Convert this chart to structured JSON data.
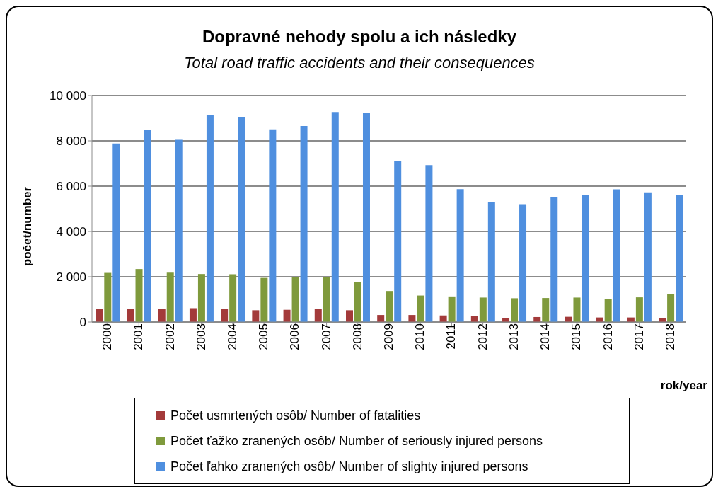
{
  "chart_data": {
    "type": "bar",
    "title": "Dopravné nehody spolu a ich následky",
    "subtitle": "Total  road traffic accidents and their consequences",
    "xlabel": "rok/year",
    "ylabel": "počet/number",
    "categories": [
      "2000",
      "2001",
      "2002",
      "2003",
      "2004",
      "2005",
      "2006",
      "2007",
      "2008",
      "2009",
      "2010",
      "2011",
      "2012",
      "2013",
      "2014",
      "2015",
      "2016",
      "2017",
      "2018"
    ],
    "series": [
      {
        "name": "Počet usmrtených osôb/ Number of fatalities",
        "color": "#a33a3a",
        "values": [
          590,
          580,
          580,
          610,
          570,
          520,
          540,
          590,
          520,
          310,
          310,
          290,
          250,
          180,
          220,
          230,
          200,
          200,
          180
        ]
      },
      {
        "name": "Počet ťažko zranených osôb/ Number of seriously injured persons",
        "color": "#7f9a3c",
        "values": [
          2170,
          2340,
          2180,
          2120,
          2110,
          1950,
          1990,
          1990,
          1770,
          1370,
          1170,
          1130,
          1080,
          1050,
          1060,
          1080,
          1020,
          1090,
          1230
        ]
      },
      {
        "name": "Počet ľahko zranených osôb/ Number of slighty injured persons",
        "color": "#4f8fdf",
        "values": [
          7880,
          8470,
          8050,
          9160,
          9040,
          8510,
          8660,
          9270,
          9240,
          7100,
          6930,
          5870,
          5290,
          5200,
          5500,
          5610,
          5860,
          5730,
          5620
        ]
      }
    ],
    "ylim": [
      0,
      10000
    ],
    "yticks": [
      {
        "value": 0,
        "label": "0"
      },
      {
        "value": 2000,
        "label": "2 000"
      },
      {
        "value": 4000,
        "label": "4 000"
      },
      {
        "value": 6000,
        "label": "6 000"
      },
      {
        "value": 8000,
        "label": "8 000"
      },
      {
        "value": 10000,
        "label": "10 000"
      }
    ],
    "grid": "y",
    "legend": "bottom"
  }
}
